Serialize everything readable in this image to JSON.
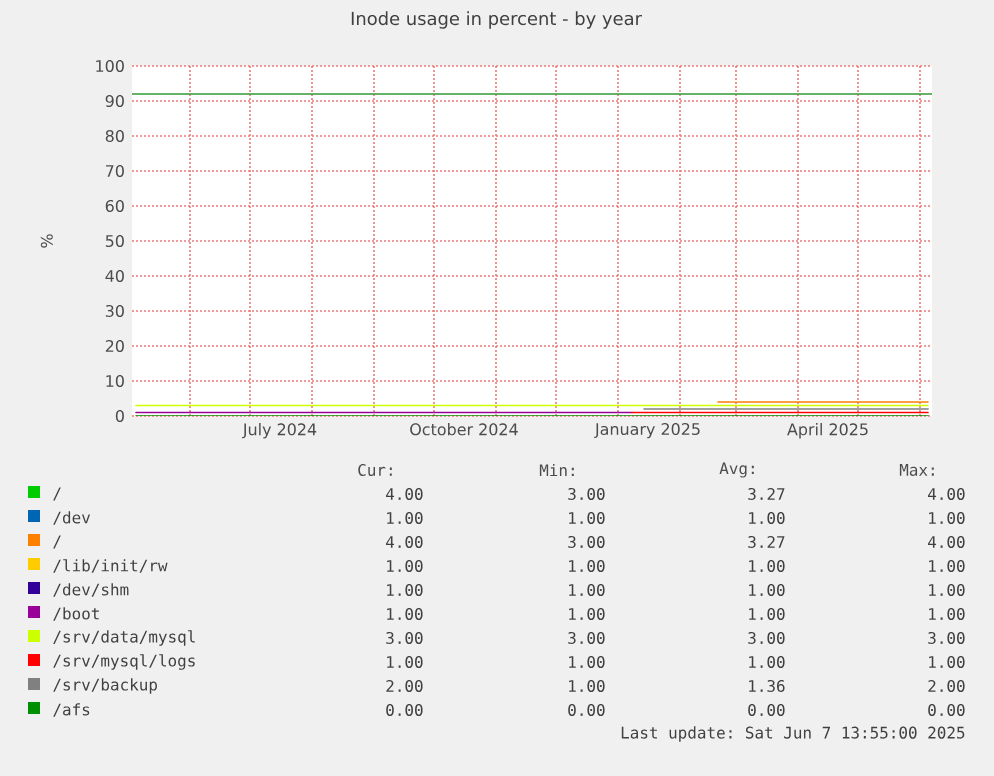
{
  "chart_data": {
    "type": "step",
    "title": "Inode usage in percent - by year",
    "ylabel": "%",
    "xlim": [
      "2024-05-03",
      "2025-06-07"
    ],
    "xticks": [
      {
        "value": "2024-06-01",
        "label": null
      },
      {
        "value": "2024-07-01",
        "label": null
      },
      {
        "value": "2024-07-16",
        "label": "July 2024"
      },
      {
        "value": "2024-08-01",
        "label": null
      },
      {
        "value": "2024-09-01",
        "label": null
      },
      {
        "value": "2024-10-01",
        "label": null
      },
      {
        "value": "2024-10-16",
        "label": "October 2024"
      },
      {
        "value": "2024-11-01",
        "label": null
      },
      {
        "value": "2024-12-01",
        "label": null
      },
      {
        "value": "2025-01-01",
        "label": null
      },
      {
        "value": "2025-01-16",
        "label": "January 2025"
      },
      {
        "value": "2025-02-01",
        "label": null
      },
      {
        "value": "2025-03-01",
        "label": null
      },
      {
        "value": "2025-04-01",
        "label": null
      },
      {
        "value": "2025-04-16",
        "label": "April 2025"
      },
      {
        "value": "2025-05-01",
        "label": null
      },
      {
        "value": "2025-06-01",
        "label": null
      }
    ],
    "ylim": [
      0,
      100
    ],
    "yticks": [
      0,
      10,
      20,
      30,
      40,
      50,
      60,
      70,
      80,
      90,
      100
    ],
    "grid": true,
    "legend": "bottom",
    "ref_lines": [
      {
        "axis": "y",
        "value": 92,
        "color": "#339933"
      }
    ],
    "series": [
      {
        "name": "/",
        "color": "#00cc00"
      },
      {
        "name": "/dev",
        "color": "#0066b3"
      },
      {
        "name": "/",
        "color": "#ff8000",
        "x": [
          "2025-02-20",
          "2025-06-05"
        ],
        "values": [
          4,
          4
        ]
      },
      {
        "name": "/lib/init/rw",
        "color": "#ffcc00"
      },
      {
        "name": "/dev/shm",
        "color": "#330099"
      },
      {
        "name": "/boot",
        "color": "#990099",
        "x": [
          "2024-05-05",
          "2025-01-08"
        ],
        "values": [
          1,
          1
        ]
      },
      {
        "name": "/srv/data/mysql",
        "color": "#ccff00",
        "x": [
          "2024-05-05",
          "2025-06-05"
        ],
        "values": [
          3,
          3
        ]
      },
      {
        "name": "/srv/mysql/logs",
        "color": "#ff0000",
        "x": [
          "2025-01-08",
          "2025-06-05"
        ],
        "values": [
          1,
          1
        ]
      },
      {
        "name": "/srv/backup",
        "color": "#808080",
        "x": [
          "2025-01-14",
          "2025-06-05"
        ],
        "values": [
          2,
          2
        ]
      },
      {
        "name": "/afs",
        "color": "#008f00",
        "x": [
          "2024-05-05",
          "2025-06-05"
        ],
        "values": [
          0,
          0
        ]
      }
    ],
    "annotations": [
      "Cur:",
      "Min:",
      "Avg:",
      "Max:",
      "4.00",
      "3.00",
      "3.27",
      "4.00",
      "1.00",
      "1.00",
      "1.00",
      "1.00",
      "4.00",
      "3.00",
      "3.27",
      "4.00",
      "1.00",
      "1.00",
      "1.00",
      "1.00",
      "1.00",
      "1.00",
      "1.00",
      "1.00",
      "1.00",
      "1.00",
      "1.00",
      "1.00",
      "3.00",
      "3.00",
      "3.00",
      "3.00",
      "1.00",
      "1.00",
      "1.00",
      "1.00",
      "2.00",
      "1.00",
      "1.36",
      "2.00",
      "0.00",
      "0.00",
      "0.00",
      "0.00",
      "Last update:  Sat Jun  7 13:55:00 2025"
    ]
  }
}
